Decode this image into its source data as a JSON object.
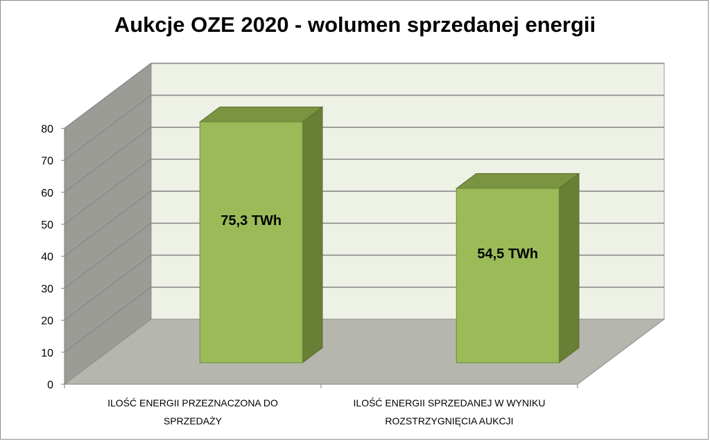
{
  "chart_data": {
    "type": "bar",
    "title": "Aukcje OZE 2020 - wolumen sprzedanej energii",
    "categories": [
      [
        "ILOŚĆ ENERGII PRZEZNACZONA DO",
        "SPRZEDAŻY"
      ],
      [
        "ILOŚĆ ENERGII SPRZEDANEJ W WYNIKU",
        "ROZSTRZYGNIĘCIA AUKCJI"
      ]
    ],
    "values": [
      75.3,
      54.5
    ],
    "data_labels": [
      "75,3 TWh",
      "54,5 TWh"
    ],
    "ylim": [
      0,
      80
    ],
    "yticks": [
      0,
      10,
      20,
      30,
      40,
      50,
      60,
      70,
      80
    ],
    "grid": true,
    "legend": "none",
    "style": "3d-column",
    "colors": {
      "bar_front": "#9bbb59",
      "bar_side": "#6a7f36",
      "bar_top": "#7a9441",
      "back_wall": "#eef1e6",
      "side_wall": "#9c9c97",
      "floor": "#b5b7ae",
      "grid": "#8a8a8a"
    }
  }
}
